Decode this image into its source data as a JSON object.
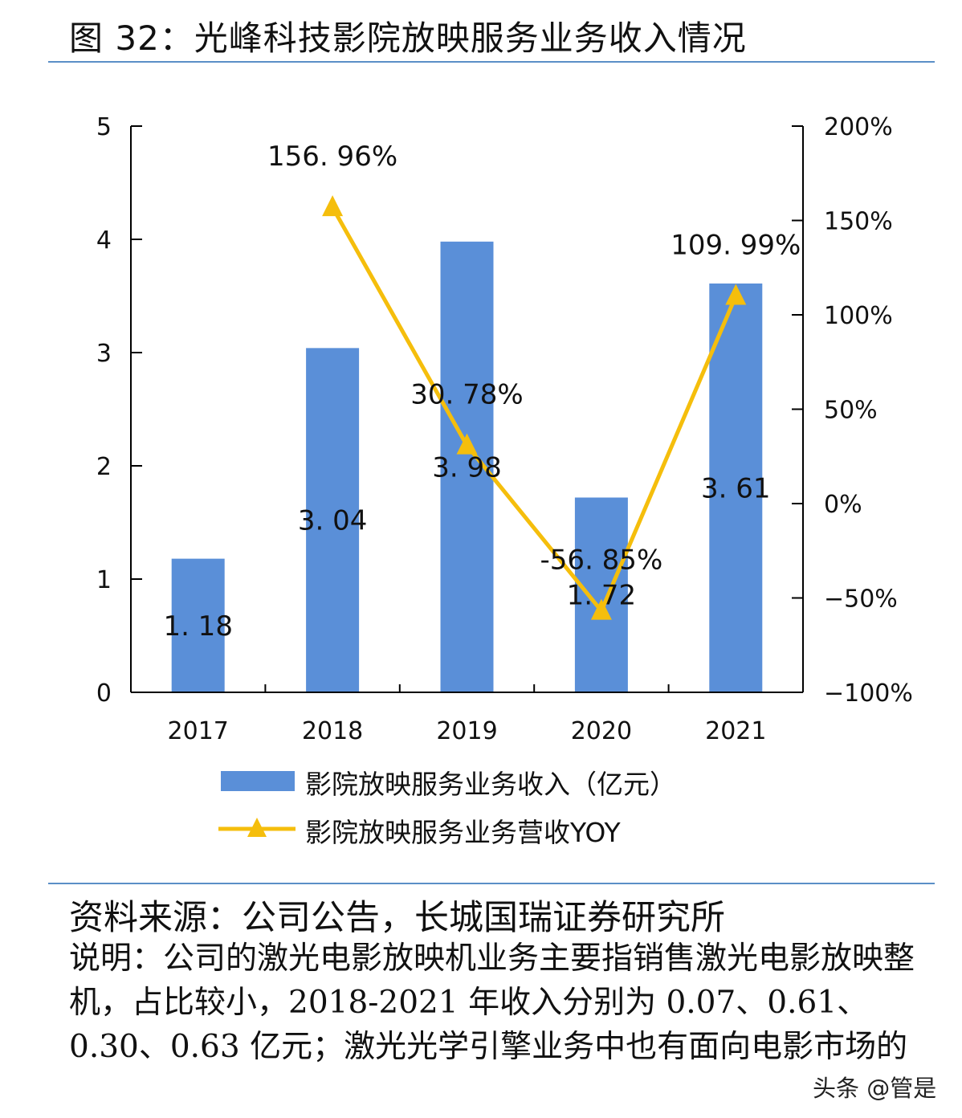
{
  "title": "图 32：光峰科技影院放映服务业务收入情况",
  "chart_data": {
    "type": "bar+line",
    "categories": [
      "2017",
      "2018",
      "2019",
      "2020",
      "2021"
    ],
    "series": [
      {
        "name": "影院放映服务业务收入（亿元）",
        "type": "bar",
        "axis": "left",
        "color": "#5a8fd8",
        "values": [
          1.18,
          3.04,
          3.98,
          1.72,
          3.61
        ],
        "labels": [
          "1. 18",
          "3. 04",
          "3. 98",
          "1. 72",
          "3. 61"
        ]
      },
      {
        "name": "影院放映服务业务营收YOY",
        "type": "line",
        "axis": "right",
        "color": "#f5be0c",
        "marker": "triangle",
        "values": [
          null,
          156.96,
          30.78,
          -56.85,
          109.99
        ],
        "labels": [
          "",
          "156. 96%",
          "30. 78%",
          "-56. 85%",
          "109. 99%"
        ]
      }
    ],
    "left_axis": {
      "ylim": [
        0,
        5
      ],
      "ticks": [
        "0",
        "1",
        "2",
        "3",
        "4",
        "5"
      ]
    },
    "right_axis": {
      "ylim": [
        -100,
        200
      ],
      "ticks": [
        "-100%",
        "-50%",
        "0%",
        "50%",
        "100%",
        "150%",
        "200%"
      ]
    },
    "grid": false,
    "legend": "bottom"
  },
  "source": "资料来源：公司公告，长城国瑞证券研究所",
  "note": "说明：公司的激光电影放映机业务主要指销售激光电影放映整机，占比较小，2018-2021 年收入分别为 0.07、0.61、0.30、0.63 亿元；激光光学引擎业务中也有面向电影市场的",
  "watermark": "头条 @管是"
}
